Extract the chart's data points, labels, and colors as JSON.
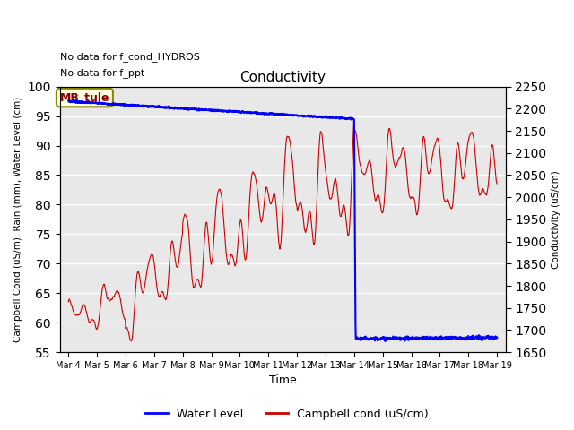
{
  "title": "Conductivity",
  "ylabel_left": "Campbell Cond (uS/m), Rain (mm), Water Level (cm)",
  "ylabel_right": "Conductivity (uS/cm)",
  "xlabel": "Time",
  "ylim_left": [
    55,
    100
  ],
  "ylim_right": [
    1650,
    2250
  ],
  "annotations": [
    "No data for f_cond_HYDROS",
    "No data for f_ppt"
  ],
  "mb_tule_label": "MB_tule",
  "xtick_labels": [
    "Mar 4",
    "Mar 5",
    "Mar 6",
    "Mar 7",
    "Mar 8",
    "Mar 9",
    "Mar 10",
    "Mar 11",
    "Mar 12",
    "Mar 13",
    "Mar 14",
    "Mar 15",
    "Mar 16",
    "Mar 17",
    "Mar 18",
    "Mar 19"
  ],
  "yticks_left": [
    55,
    60,
    65,
    70,
    75,
    80,
    85,
    90,
    95,
    100
  ],
  "yticks_right": [
    1650,
    1700,
    1750,
    1800,
    1850,
    1900,
    1950,
    2000,
    2050,
    2100,
    2150,
    2200,
    2250
  ],
  "bg_color": "#e8e8e8",
  "blue_color": "#0000ff",
  "red_color": "#cc0000",
  "legend_entries": [
    "Water Level",
    "Campbell cond (uS/cm)"
  ],
  "figsize": [
    6.4,
    4.8
  ],
  "dpi": 100
}
